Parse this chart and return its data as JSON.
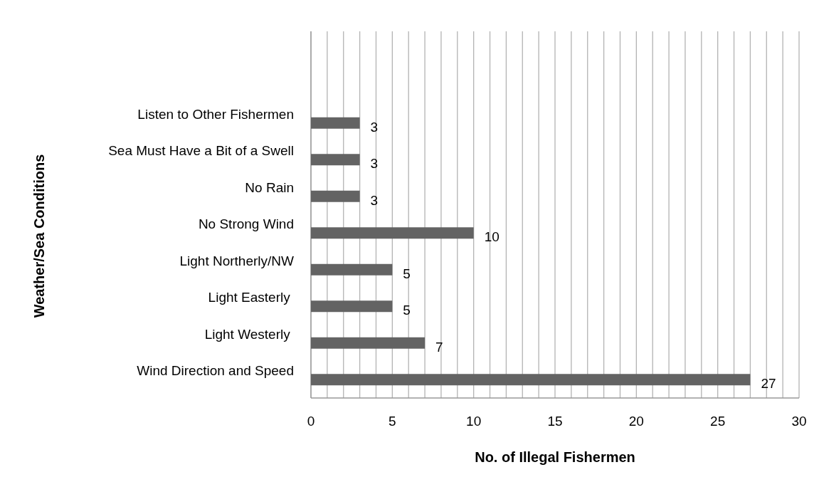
{
  "chart_data": {
    "type": "bar",
    "orientation": "horizontal",
    "xlabel": "No. of Illegal Fishermen",
    "ylabel": "Weather/Sea Conditions",
    "categories": [
      null,
      null,
      "Listen to Other Fishermen",
      "Sea Must Have a Bit of a Swell",
      "No Rain",
      "No Strong Wind",
      "Light Northerly/NW",
      "Light Easterly ",
      "Light Westerly ",
      "Wind Direction and Speed"
    ],
    "values": [
      null,
      null,
      3,
      3,
      3,
      10,
      5,
      5,
      7,
      27
    ],
    "color": "#636363",
    "xlim": [
      0,
      30
    ],
    "xticks": [
      0,
      {
        "value": 1,
        "label": null
      },
      {
        "value": 2,
        "label": null
      },
      {
        "value": 3,
        "label": null
      },
      {
        "value": 4,
        "label": null
      },
      5,
      {
        "value": 6,
        "label": null
      },
      {
        "value": 7,
        "label": null
      },
      {
        "value": 8,
        "label": null
      },
      {
        "value": 9,
        "label": null
      },
      10,
      {
        "value": 11,
        "label": null
      },
      {
        "value": 12,
        "label": null
      },
      {
        "value": 13,
        "label": null
      },
      {
        "value": 14,
        "label": null
      },
      15,
      {
        "value": 16,
        "label": null
      },
      {
        "value": 17,
        "label": null
      },
      {
        "value": 18,
        "label": null
      },
      {
        "value": 19,
        "label": null
      },
      20,
      {
        "value": 21,
        "label": null
      },
      {
        "value": 22,
        "label": null
      },
      {
        "value": 23,
        "label": null
      },
      {
        "value": 24,
        "label": null
      },
      25,
      {
        "value": 26,
        "label": null
      },
      {
        "value": 27,
        "label": null
      },
      {
        "value": 28,
        "label": null
      },
      {
        "value": 29,
        "label": null
      },
      30
    ],
    "grid": "x",
    "data_labels": true
  }
}
